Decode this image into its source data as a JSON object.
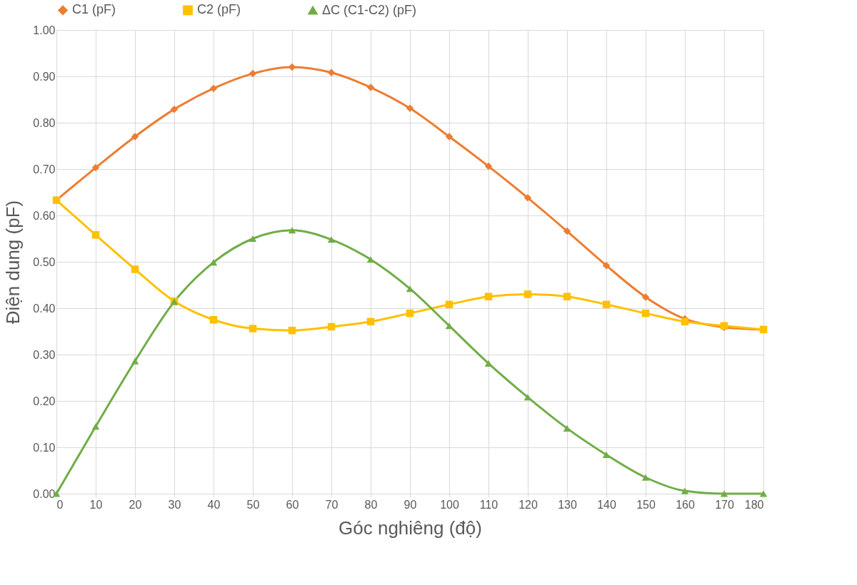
{
  "chart_data": {
    "type": "line",
    "xlabel": "Góc nghiêng (độ)",
    "ylabel": "Điện dung (pF)",
    "x": [
      0,
      10,
      20,
      30,
      40,
      50,
      60,
      70,
      80,
      90,
      100,
      110,
      120,
      130,
      140,
      150,
      160,
      170,
      180
    ],
    "series": [
      {
        "name": "C1 (pF)",
        "color": "#ed7d31",
        "marker": "diamond",
        "values": [
          0.633,
          0.703,
          0.77,
          0.829,
          0.874,
          0.906,
          0.92,
          0.908,
          0.876,
          0.831,
          0.77,
          0.706,
          0.638,
          0.566,
          0.492,
          0.424,
          0.377,
          0.359,
          0.354
        ]
      },
      {
        "name": "C2 (pF)",
        "color": "#ffc000",
        "marker": "square",
        "values": [
          0.633,
          0.558,
          0.484,
          0.415,
          0.375,
          0.356,
          0.352,
          0.36,
          0.371,
          0.389,
          0.408,
          0.425,
          0.43,
          0.425,
          0.408,
          0.389,
          0.371,
          0.362,
          0.354
        ]
      },
      {
        "name": "ΔC (C1-C2) (pF)",
        "color": "#70ad47",
        "marker": "triangle",
        "values": [
          0.0,
          0.145,
          0.286,
          0.414,
          0.499,
          0.55,
          0.568,
          0.548,
          0.505,
          0.442,
          0.362,
          0.281,
          0.208,
          0.141,
          0.084,
          0.035,
          0.006,
          0.0,
          0.0
        ]
      }
    ],
    "xlim": [
      0,
      180
    ],
    "xticks": [
      0,
      10,
      20,
      30,
      40,
      50,
      60,
      70,
      80,
      90,
      100,
      110,
      120,
      130,
      140,
      150,
      160,
      170,
      180
    ],
    "ylim": [
      0,
      1
    ],
    "yticks": [
      {
        "value": 0,
        "label": "0.00"
      },
      {
        "value": 0.1,
        "label": "0.10"
      },
      {
        "value": 0.2,
        "label": "0.20"
      },
      {
        "value": 0.3,
        "label": "0.30"
      },
      {
        "value": 0.4,
        "label": "0.40"
      },
      {
        "value": 0.5,
        "label": "0.50"
      },
      {
        "value": 0.6,
        "label": "0.60"
      },
      {
        "value": 0.7,
        "label": "0.70"
      },
      {
        "value": 0.8,
        "label": "0.80"
      },
      {
        "value": 0.9,
        "label": "0.90"
      },
      {
        "value": 1.0,
        "label": "1.00"
      }
    ],
    "grid": true,
    "legend": "top",
    "line_style": "solid"
  }
}
